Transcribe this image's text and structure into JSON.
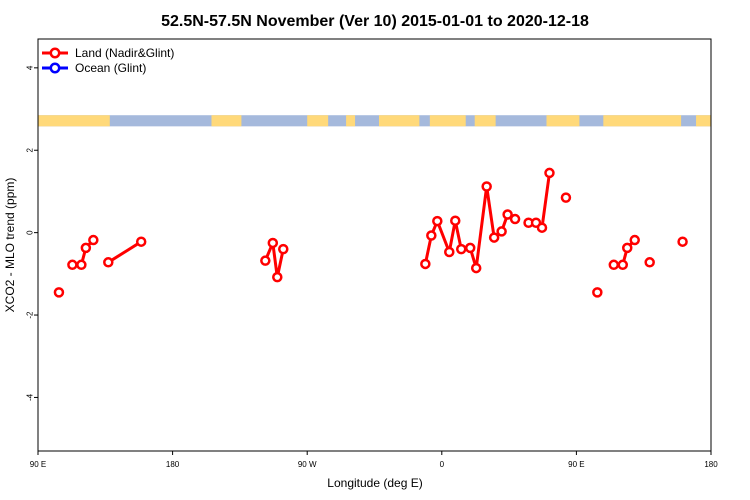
{
  "chart_data": {
    "type": "line",
    "title": "52.5N-57.5N November (Ver 10)   2015-01-01 to 2020-12-18",
    "xlabel": "Longitude (deg E)",
    "ylabel": "XCO2 - MLO trend (ppm)",
    "xlim": [
      90,
      540
    ],
    "ylim": [
      -5.3,
      4.7
    ],
    "x_ticks": [
      {
        "value": 90,
        "label": "90 E"
      },
      {
        "value": 180,
        "label": "180"
      },
      {
        "value": 270,
        "label": "90 W"
      },
      {
        "value": 360,
        "label": "0"
      },
      {
        "value": 450,
        "label": "90 E"
      },
      {
        "value": 540,
        "label": "180"
      }
    ],
    "y_ticks": [
      {
        "value": -4,
        "label": "-4"
      },
      {
        "value": -2,
        "label": "-2"
      },
      {
        "value": 0,
        "label": "0"
      },
      {
        "value": 2,
        "label": "2"
      },
      {
        "value": 4,
        "label": "4"
      }
    ],
    "legend": {
      "position": "top-left",
      "entries": [
        {
          "label": "Land (Nadir&Glint)",
          "color": "#ff0000"
        },
        {
          "label": "Ocean (Glint)",
          "color": "#0000ff"
        }
      ]
    },
    "series": [
      {
        "name": "Land (Nadir&Glint)",
        "color": "#ff0000",
        "segments": [
          [
            [
              104,
              -1.45
            ]
          ],
          [
            [
              113,
              -0.78
            ],
            [
              119,
              -0.78
            ],
            [
              122,
              -0.37
            ],
            [
              127,
              -0.18
            ]
          ],
          [
            [
              137,
              -0.72
            ],
            [
              159,
              -0.22
            ]
          ],
          [
            [
              242,
              -0.68
            ],
            [
              247,
              -0.25
            ],
            [
              250,
              -1.08
            ],
            [
              254,
              -0.4
            ]
          ],
          [
            [
              349,
              -0.76
            ],
            [
              353,
              -0.07
            ],
            [
              357,
              0.28
            ],
            [
              365,
              -0.47
            ],
            [
              369,
              0.29
            ],
            [
              373,
              -0.4
            ],
            [
              379,
              -0.37
            ],
            [
              383,
              -0.86
            ],
            [
              390,
              1.12
            ],
            [
              395,
              -0.12
            ],
            [
              400,
              0.03
            ],
            [
              404,
              0.44
            ],
            [
              409,
              0.33
            ]
          ],
          [
            [
              418,
              0.24
            ],
            [
              423,
              0.24
            ],
            [
              427,
              0.12
            ],
            [
              432,
              1.45
            ]
          ],
          [
            [
              443,
              0.85
            ]
          ],
          [
            [
              464,
              -1.45
            ]
          ],
          [
            [
              475,
              -0.78
            ],
            [
              481,
              -0.78
            ],
            [
              484,
              -0.37
            ],
            [
              489,
              -0.18
            ]
          ],
          [
            [
              499,
              -0.72
            ]
          ],
          [
            [
              521,
              -0.22
            ]
          ]
        ]
      },
      {
        "name": "Ocean (Glint)",
        "color": "#0000ff",
        "segments": []
      }
    ],
    "land_ocean_strip": {
      "y_range": [
        2.58,
        2.85
      ],
      "land_color": "#ffd97a",
      "ocean_color": "#a5b9dc",
      "land_intervals": [
        [
          90,
          138
        ],
        [
          206,
          226
        ],
        [
          270,
          284
        ],
        [
          296,
          302
        ],
        [
          318,
          345
        ],
        [
          352,
          376
        ],
        [
          382,
          396
        ],
        [
          430,
          452
        ],
        [
          468,
          520
        ],
        [
          530,
          540
        ]
      ]
    }
  }
}
